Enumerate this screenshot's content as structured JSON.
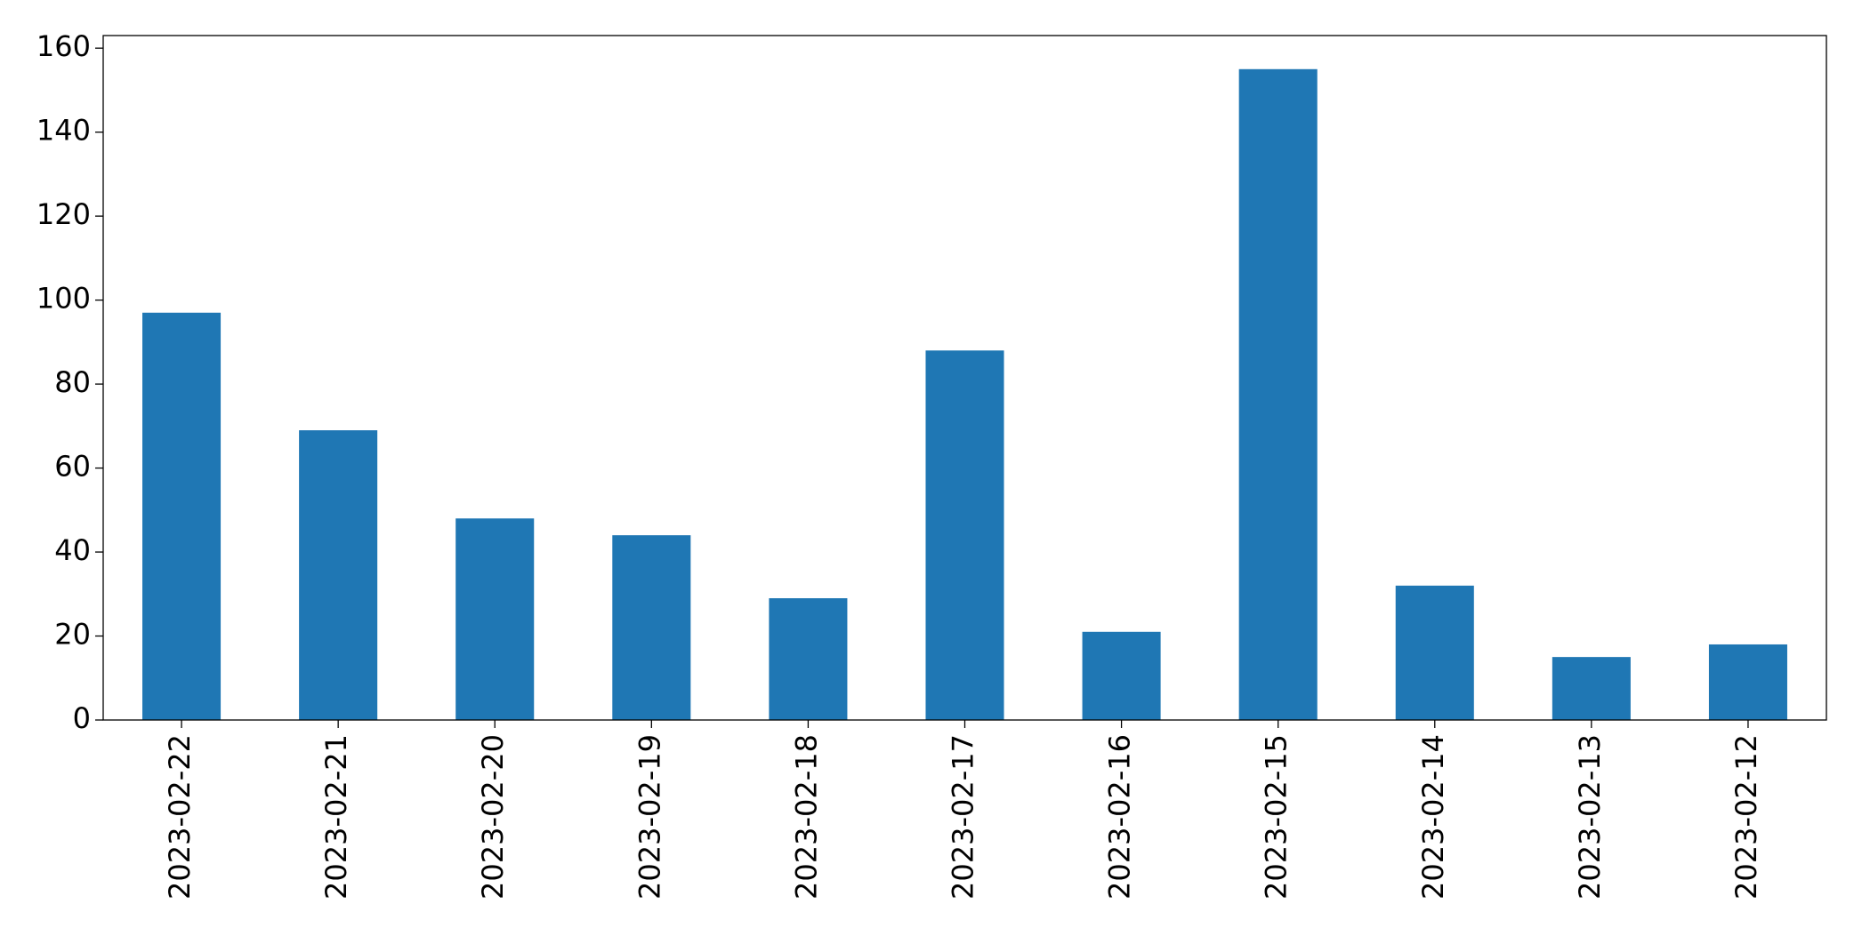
{
  "chart_data": {
    "type": "bar",
    "categories": [
      "2023-02-22",
      "2023-02-21",
      "2023-02-20",
      "2023-02-19",
      "2023-02-18",
      "2023-02-17",
      "2023-02-16",
      "2023-02-15",
      "2023-02-14",
      "2023-02-13",
      "2023-02-12"
    ],
    "values": [
      97,
      69,
      48,
      44,
      29,
      88,
      21,
      155,
      32,
      15,
      18
    ],
    "color": "#1f77b4",
    "ylim": [
      0,
      163
    ],
    "yticks": [
      0,
      20,
      40,
      60,
      80,
      100,
      120,
      140,
      160
    ],
    "grid": false
  }
}
